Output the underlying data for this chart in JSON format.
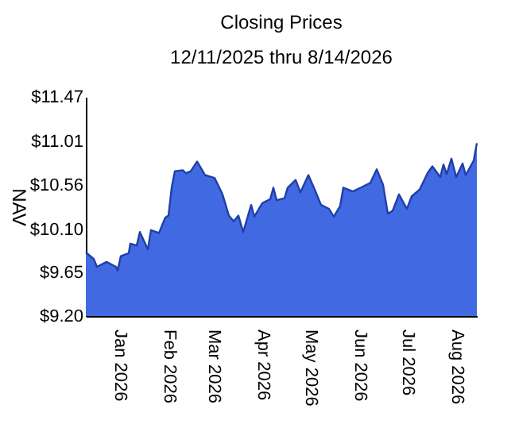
{
  "chart_data": {
    "type": "area",
    "title": "Closing Prices",
    "subtitle": "12/11/2025 thru 8/14/2026",
    "ylabel": "NAV",
    "x": [
      "2025-12-11",
      "2025-12-16",
      "2025-12-18",
      "2025-12-24",
      "2025-12-30",
      "2025-12-31",
      "2026-01-02",
      "2026-01-07",
      "2026-01-08",
      "2026-01-12",
      "2026-01-14",
      "2026-01-19",
      "2026-01-21",
      "2026-01-26",
      "2026-01-30",
      "2026-02-01",
      "2026-02-03",
      "2026-02-05",
      "2026-02-10",
      "2026-02-12",
      "2026-02-15",
      "2026-02-19",
      "2026-02-24",
      "2026-03-02",
      "2026-03-07",
      "2026-03-11",
      "2026-03-14",
      "2026-03-17",
      "2026-03-20",
      "2026-03-25",
      "2026-03-27",
      "2026-04-01",
      "2026-04-06",
      "2026-04-08",
      "2026-04-10",
      "2026-04-15",
      "2026-04-17",
      "2026-04-22",
      "2026-04-25",
      "2026-04-30",
      "2026-05-04",
      "2026-05-08",
      "2026-05-13",
      "2026-05-16",
      "2026-05-20",
      "2026-05-22",
      "2026-05-28",
      "2026-06-02",
      "2026-06-08",
      "2026-06-12",
      "2026-06-16",
      "2026-06-19",
      "2026-06-22",
      "2026-06-26",
      "2026-07-01",
      "2026-07-04",
      "2026-07-09",
      "2026-07-14",
      "2026-07-17",
      "2026-07-22",
      "2026-07-24",
      "2026-07-26",
      "2026-07-29",
      "2026-08-01",
      "2026-08-05",
      "2026-08-07",
      "2026-08-12",
      "2026-08-14"
    ],
    "series": [
      {
        "color": "#4169e1",
        "values": [
          9.86,
          9.79,
          9.71,
          9.76,
          9.71,
          9.67,
          9.82,
          9.85,
          9.95,
          9.93,
          10.07,
          9.89,
          10.09,
          10.06,
          10.22,
          10.24,
          10.53,
          10.7,
          10.71,
          10.68,
          10.7,
          10.8,
          10.66,
          10.63,
          10.46,
          10.24,
          10.18,
          10.24,
          10.07,
          10.35,
          10.23,
          10.37,
          10.41,
          10.53,
          10.4,
          10.42,
          10.53,
          10.61,
          10.48,
          10.66,
          10.51,
          10.35,
          10.31,
          10.23,
          10.34,
          10.53,
          10.49,
          10.53,
          10.58,
          10.72,
          10.56,
          10.26,
          10.29,
          10.46,
          10.31,
          10.44,
          10.51,
          10.68,
          10.75,
          10.64,
          10.77,
          10.67,
          10.83,
          10.64,
          10.78,
          10.66,
          10.81,
          10.99
        ]
      }
    ],
    "xlim": [
      "2025-12-11",
      "2026-08-14"
    ],
    "xticks": [
      {
        "value": "2026-01-01",
        "label": "Jan 2026"
      },
      {
        "value": "2026-02-01",
        "label": "Feb 2026"
      },
      {
        "value": "2026-03-01",
        "label": "Mar 2026"
      },
      {
        "value": "2026-04-01",
        "label": "Apr 2026"
      },
      {
        "value": "2026-05-01",
        "label": "May 2026"
      },
      {
        "value": "2026-06-01",
        "label": "Jun 2026"
      },
      {
        "value": "2026-07-01",
        "label": "Jul 2026"
      },
      {
        "value": "2026-08-01",
        "label": "Aug 2026"
      }
    ],
    "ylim": [
      9.2,
      11.47
    ],
    "yticks": [
      {
        "value": 9.2,
        "label": "$9.20"
      },
      {
        "value": 9.65,
        "label": "$9.65"
      },
      {
        "value": 10.1,
        "label": "$10.10"
      },
      {
        "value": 10.56,
        "label": "$10.56"
      },
      {
        "value": 11.01,
        "label": "$11.01"
      },
      {
        "value": 11.47,
        "label": "$11.47"
      }
    ],
    "grid": false
  }
}
